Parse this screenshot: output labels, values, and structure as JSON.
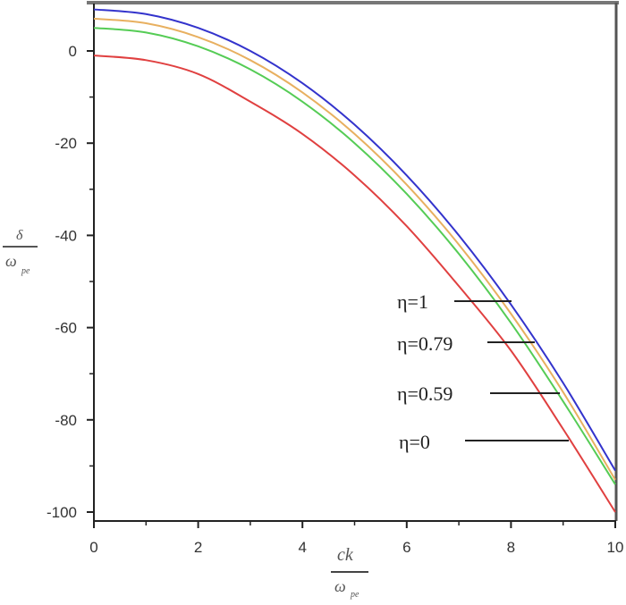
{
  "chart_data": {
    "type": "line",
    "title": "",
    "xlabel": "ck / ω_pe",
    "ylabel": "δ / ω_pe",
    "xlabel_parts": {
      "numerator": "ck",
      "denominator": "ω",
      "denominator_sub": "pe"
    },
    "ylabel_parts": {
      "numerator": "δ",
      "denominator": "ω",
      "denominator_sub": "pe"
    },
    "xlim": [
      0,
      10
    ],
    "ylim": [
      -102,
      10.5
    ],
    "x_ticks": [
      0,
      2,
      4,
      6,
      8,
      10
    ],
    "x_tick_labels": [
      "0",
      "2",
      "4",
      "6",
      "8",
      "10"
    ],
    "y_ticks": [
      0,
      -20,
      -40,
      -60,
      -80,
      -100
    ],
    "y_tick_labels": [
      "0",
      "-20",
      "-40",
      "-60",
      "-80",
      "-100"
    ],
    "grid": false,
    "legend_position": "inside right, annotation lines pointing to curves",
    "x": [
      0,
      1,
      2,
      3,
      4,
      5,
      6,
      7,
      8,
      9,
      10
    ],
    "series": [
      {
        "name": "η=1",
        "color": "#3333cc",
        "values": [
          9,
          8,
          5,
          0,
          -7,
          -16,
          -27,
          -40,
          -55,
          -72,
          -91
        ]
      },
      {
        "name": "η=0.79",
        "color": "#e8b060",
        "values": [
          7,
          6,
          3,
          -2,
          -9,
          -18,
          -29,
          -42,
          -57,
          -74,
          -93
        ]
      },
      {
        "name": "η=0.59",
        "color": "#55cc55",
        "values": [
          5,
          4,
          1,
          -4,
          -11,
          -20,
          -31,
          -44,
          -59,
          -76,
          -94
        ]
      },
      {
        "name": "η=0",
        "color": "#e04040",
        "values": [
          -1,
          -2,
          -5,
          -11,
          -18,
          -27,
          -38,
          -51,
          -65,
          -82,
          -100
        ]
      }
    ],
    "legend": [
      {
        "label": "η=1",
        "line_to_x": 8.0
      },
      {
        "label": "η=0.79",
        "line_to_x": 8.5
      },
      {
        "label": "η=0.59",
        "line_to_x": 8.9
      },
      {
        "label": "η=0",
        "line_to_x": 9.1
      }
    ]
  }
}
